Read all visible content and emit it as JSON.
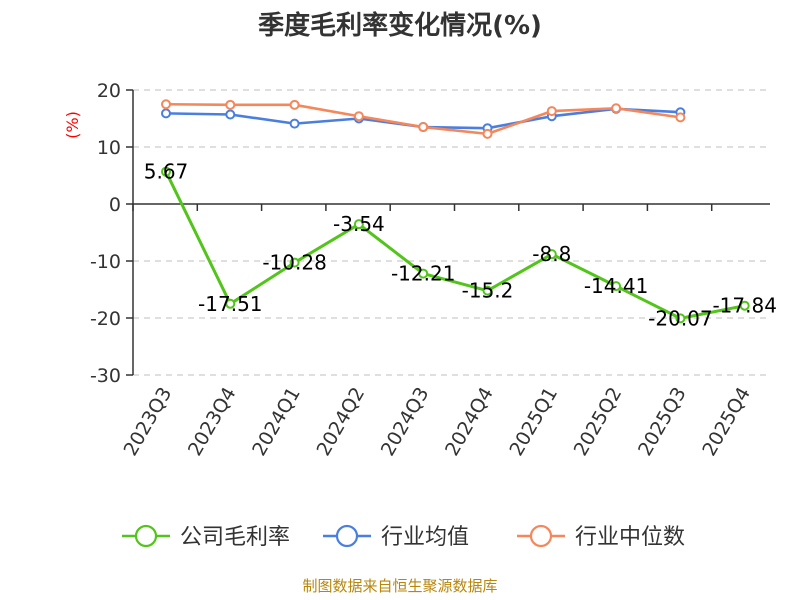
{
  "chart_data": {
    "type": "line",
    "title": "季度毛利率变化情况(%)",
    "ylabel": "(%)",
    "xlabel": "",
    "categories": [
      "2023Q3",
      "2023Q4",
      "2024Q1",
      "2024Q2",
      "2024Q3",
      "2024Q4",
      "2025Q1",
      "2025Q2",
      "2025Q3",
      "2025Q4"
    ],
    "ylim": [
      -30,
      20
    ],
    "yticks": [
      20,
      10,
      0,
      -10,
      -20,
      -30
    ],
    "grid": true,
    "legend_position": "bottom",
    "series": [
      {
        "name": "公司毛利率",
        "color": "#52c41a",
        "values": [
          5.67,
          -17.51,
          -10.28,
          -3.54,
          -12.21,
          -15.2,
          -8.8,
          -14.41,
          -20.07,
          -17.84
        ],
        "labels": [
          "5.67",
          "-17.51",
          "-10.28",
          "-3.54",
          "-12.21",
          "-15.2",
          "-8.8",
          "-14.41",
          "-20.07",
          "-17.84"
        ]
      },
      {
        "name": "行业均值",
        "color": "#4a7fe0",
        "values": [
          15.9,
          15.7,
          14.1,
          15.0,
          13.5,
          13.3,
          15.4,
          16.7,
          16.1,
          null
        ]
      },
      {
        "name": "行业中位数",
        "color": "#f5875a",
        "values": [
          17.5,
          17.4,
          17.4,
          15.4,
          13.5,
          12.3,
          16.3,
          16.8,
          15.2,
          null
        ]
      }
    ]
  },
  "source": "制图数据来自恒生聚源数据库"
}
